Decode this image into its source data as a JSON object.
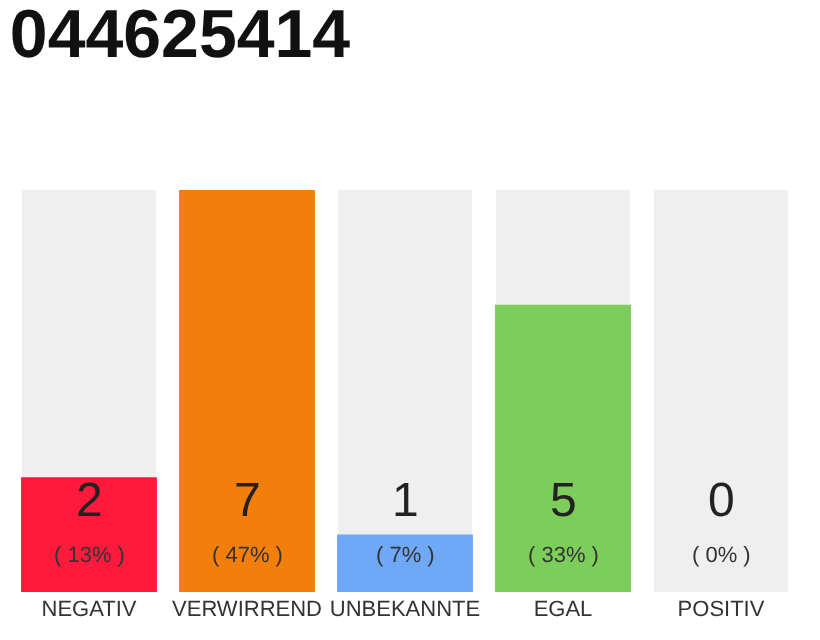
{
  "chart_data": {
    "type": "bar",
    "title": "044625414",
    "categories": [
      "NEGATIV",
      "VERWIRREND",
      "UNBEKANNTE",
      "EGAL",
      "POSITIV"
    ],
    "values": [
      2,
      7,
      1,
      5,
      0
    ],
    "colors": [
      "#ff1a3c",
      "#f27e0c",
      "#6fa8f5",
      "#7dcd5a",
      "#cccccc"
    ],
    "value_labels": [
      "2\n( 13% )",
      "7\n( 47% )",
      "1\n( 7% )",
      "5\n( 33% )",
      "0\n( 0% )"
    ],
    "grid": false,
    "legend": false
  }
}
